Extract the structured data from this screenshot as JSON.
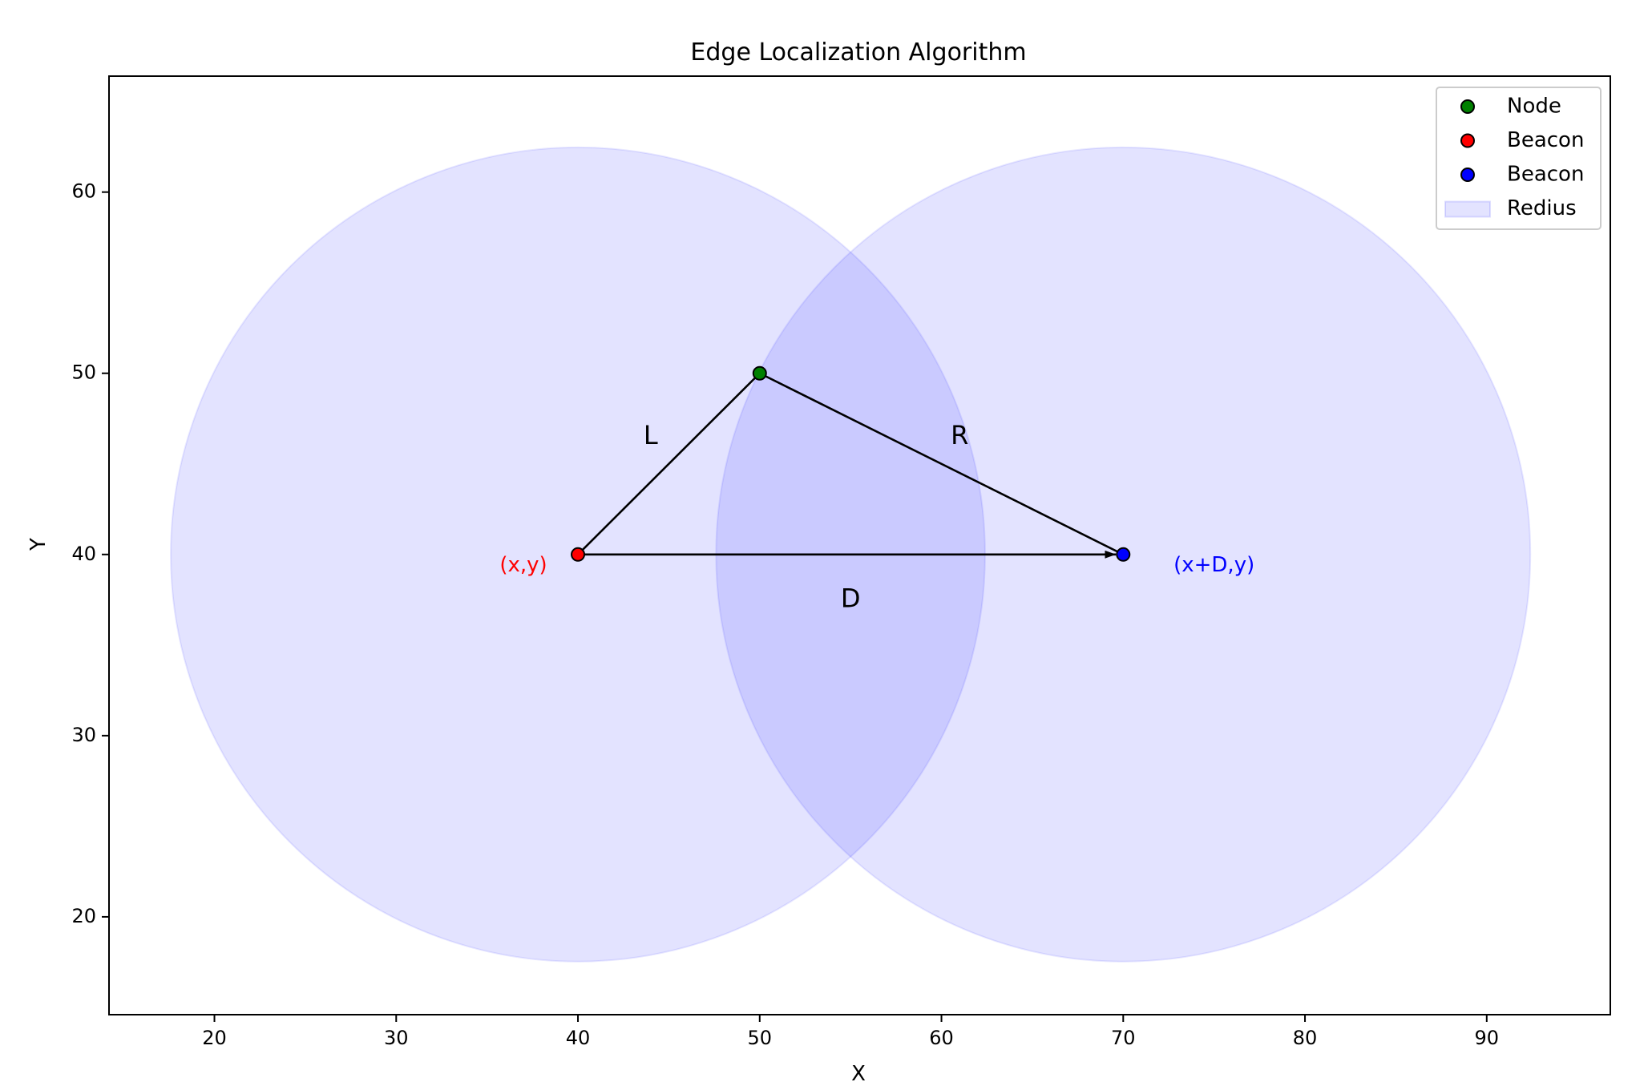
{
  "chart_data": {
    "type": "scatter",
    "title": "Edge Localization Algorithm",
    "xlabel": "X",
    "ylabel": "Y",
    "xlim": [
      14.2,
      96.8
    ],
    "ylim": [
      14.6,
      66.4
    ],
    "xticks": [
      20,
      30,
      40,
      50,
      60,
      70,
      80,
      90
    ],
    "yticks": [
      20,
      30,
      40,
      50,
      60
    ],
    "grid": false,
    "legend_position": "top-right",
    "series": [
      {
        "name": "Node",
        "kind": "point",
        "color": "#008000",
        "points": [
          [
            50,
            50
          ]
        ]
      },
      {
        "name": "Beacon",
        "kind": "point",
        "color": "#ff0000",
        "points": [
          [
            40,
            40
          ]
        ]
      },
      {
        "name": "Beacon",
        "kind": "point",
        "color": "#0000ff",
        "points": [
          [
            70,
            40
          ]
        ]
      },
      {
        "name": "Redius",
        "kind": "circle",
        "color": "#0000ff",
        "alpha": 0.11,
        "circles": [
          {
            "center": [
              40,
              40
            ],
            "radius": 22.4
          },
          {
            "center": [
              70,
              40
            ],
            "radius": 22.4
          }
        ]
      }
    ],
    "lines": [
      {
        "from": [
          40,
          40
        ],
        "to": [
          50,
          50
        ],
        "arrow": false
      },
      {
        "from": [
          50,
          50
        ],
        "to": [
          70,
          40
        ],
        "arrow": false
      },
      {
        "from": [
          40,
          40
        ],
        "to": [
          70,
          40
        ],
        "arrow": true
      }
    ],
    "annotations": [
      {
        "text": "L",
        "x": 44.0,
        "y": 46.5,
        "color": "#000000"
      },
      {
        "text": "R",
        "x": 61.0,
        "y": 46.5,
        "color": "#000000"
      },
      {
        "text": "D",
        "x": 55.0,
        "y": 37.5,
        "color": "#000000"
      },
      {
        "text": "(x,y)",
        "x": 37.0,
        "y": 39.4,
        "color": "#ff0000"
      },
      {
        "text": "(x+D,y)",
        "x": 75.0,
        "y": 39.4,
        "color": "#0000ff"
      }
    ]
  }
}
